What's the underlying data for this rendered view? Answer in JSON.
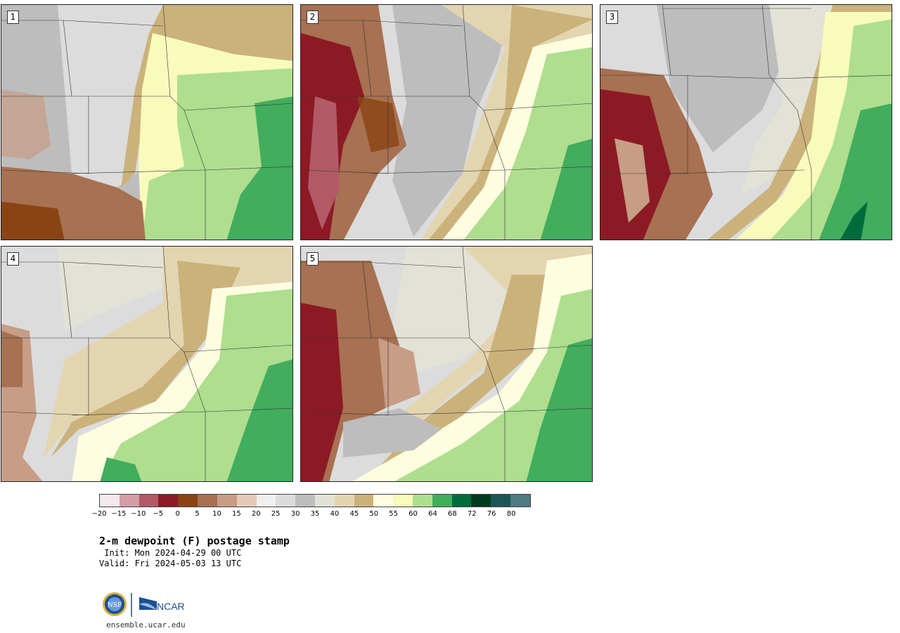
{
  "panels": [
    {
      "label": "1"
    },
    {
      "label": "2"
    },
    {
      "label": "3"
    },
    {
      "label": "4"
    },
    {
      "label": "5"
    }
  ],
  "colorbar": {
    "ticks": [
      "−20",
      "−15",
      "−10",
      "−5",
      "0",
      "5",
      "10",
      "15",
      "20",
      "25",
      "30",
      "35",
      "40",
      "45",
      "50",
      "55",
      "60",
      "64",
      "68",
      "72",
      "76",
      "80"
    ],
    "colors": [
      "#f4e9ec",
      "#d39ca6",
      "#b15a66",
      "#8c1a24",
      "#8a4313",
      "#a77152",
      "#c79d86",
      "#e5c9b8",
      "#f0f0f0",
      "#dcdcdc",
      "#bdbdbd",
      "#e3e2d6",
      "#e3d5b0",
      "#cbb27a",
      "#fefde0",
      "#f8fbbc",
      "#aede8e",
      "#41ad5d",
      "#006b3c",
      "#003a20",
      "#1d5555",
      "#4e7a82"
    ]
  },
  "title": "2-m dewpoint (F) postage stamp",
  "init": " Init: Mon 2024-04-29 00 UTC",
  "valid": "Valid: Fri 2024-05-03 13 UTC",
  "logos": {
    "nsf": "NSF",
    "ncar": "NCAR"
  },
  "site": "ensemble.ucar.edu"
}
